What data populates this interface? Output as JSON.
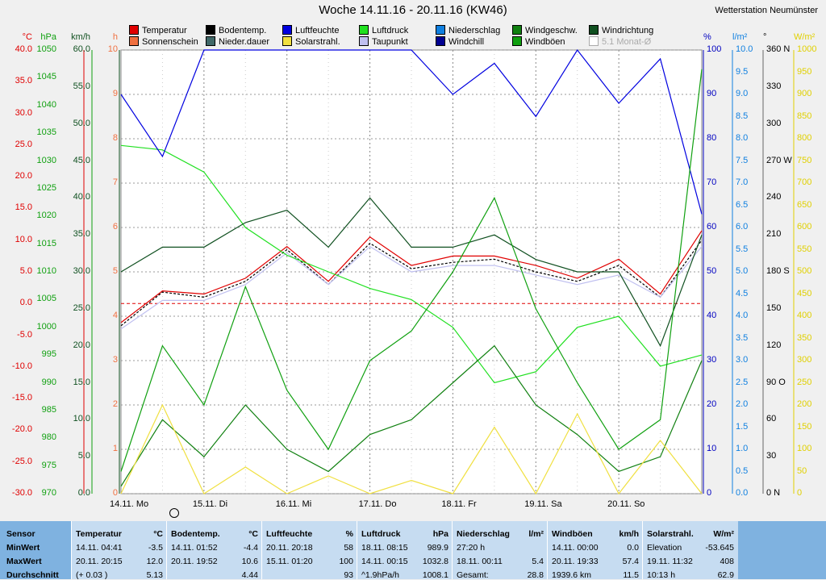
{
  "title": "Woche 14.11.16 - 20.11.16 (KW46)",
  "station": "Wetterstation Neumünster",
  "legend": [
    {
      "label": "Temperatur",
      "color": "#e00000"
    },
    {
      "label": "Bodentemp.",
      "color": "#000000"
    },
    {
      "label": "Luftfeuchte",
      "color": "#0000e0"
    },
    {
      "label": "Luftdruck",
      "color": "#20e020"
    },
    {
      "label": "Niederschlag",
      "color": "#1080e0"
    },
    {
      "label": "Windgeschw.",
      "color": "#108010"
    },
    {
      "label": "Windrichtung",
      "color": "#105020"
    },
    {
      "label": "Sonnenschein",
      "color": "#f07040"
    },
    {
      "label": "Nieder.dauer",
      "color": "#406868"
    },
    {
      "label": "Solarstrahl.",
      "color": "#f0e040"
    },
    {
      "label": "Taupunkt",
      "color": "#c0c0f0"
    },
    {
      "label": "Windchill",
      "color": "#000090"
    },
    {
      "label": "Windböen",
      "color": "#10a010"
    },
    {
      "label": "5.1 Monat-Ø",
      "color": "#d0d0d0"
    }
  ],
  "axes_left": [
    {
      "unit": "°C",
      "color": "#e00000",
      "ticks": [
        "40.0",
        "35.0",
        "30.0",
        "25.0",
        "20.0",
        "15.0",
        "10.0",
        "5.0",
        "0.0",
        "-5.0",
        "-10.0",
        "-15.0",
        "-20.0",
        "-25.0",
        "-30.0"
      ]
    },
    {
      "unit": "hPa",
      "color": "#10a010",
      "ticks": [
        "1050",
        "1045",
        "1040",
        "1035",
        "1030",
        "1025",
        "1020",
        "1015",
        "1010",
        "1005",
        "1000",
        "995",
        "990",
        "985",
        "980",
        "975",
        "970"
      ]
    },
    {
      "unit": "km/h",
      "color": "#105020",
      "ticks": [
        "60.0",
        "55.0",
        "50.0",
        "45.0",
        "40.0",
        "35.0",
        "30.0",
        "25.0",
        "20.0",
        "15.0",
        "10.0",
        "5.0",
        "0.0"
      ]
    },
    {
      "unit": "h",
      "color": "#f07040",
      "ticks": [
        "10",
        "9",
        "8",
        "7",
        "6",
        "5",
        "4",
        "3",
        "2",
        "1",
        "0"
      ]
    }
  ],
  "axes_right": [
    {
      "unit": "%",
      "color": "#0000c0",
      "ticks": [
        "100",
        "90",
        "80",
        "70",
        "60",
        "50",
        "40",
        "30",
        "20",
        "10",
        "0"
      ]
    },
    {
      "unit": "l/m²",
      "color": "#1080e0",
      "ticks": [
        "10.0",
        "9.5",
        "9.0",
        "8.5",
        "8.0",
        "7.5",
        "7.0",
        "6.5",
        "6.0",
        "5.5",
        "5.0",
        "4.5",
        "4.0",
        "3.5",
        "3.0",
        "2.5",
        "2.0",
        "1.5",
        "1.0",
        "0.5",
        "0.0"
      ]
    },
    {
      "unit": "°",
      "color": "#000000",
      "ticks": [
        "360 N",
        "330",
        "300",
        "270 W",
        "240",
        "210",
        "180 S",
        "150",
        "120",
        "90 O",
        "60",
        "30",
        "0 N"
      ]
    },
    {
      "unit": "W/m²",
      "color": "#e0d000",
      "ticks": [
        "1000",
        "950",
        "900",
        "850",
        "800",
        "750",
        "700",
        "650",
        "600",
        "550",
        "500",
        "450",
        "400",
        "350",
        "300",
        "250",
        "200",
        "150",
        "100",
        "50",
        "0"
      ]
    }
  ],
  "x_labels": [
    "14.11. Mo",
    "15.11. Di",
    "16.11. Mi",
    "17.11. Do",
    "18.11. Fr",
    "19.11. Sa",
    "20.11. So"
  ],
  "chart_data": {
    "type": "line",
    "title": "Woche 14.11.16 - 20.11.16 (KW46)",
    "x": [
      "14.11.",
      "14.11. 12h",
      "15.11.",
      "15.11. 12h",
      "16.11.",
      "16.11. 12h",
      "17.11.",
      "17.11. 12h",
      "18.11.",
      "18.11. 12h",
      "19.11.",
      "19.11. 12h",
      "20.11.",
      "20.11. 12h",
      "21.11."
    ],
    "series": [
      {
        "name": "Temperatur",
        "unit": "°C",
        "color": "#e00000",
        "values": [
          -3.0,
          2.0,
          1.5,
          4.0,
          9.0,
          3.5,
          10.5,
          6.0,
          7.5,
          7.5,
          6.0,
          4.0,
          7.0,
          1.5,
          11.5
        ]
      },
      {
        "name": "Bodentemp.",
        "unit": "°C",
        "color": "#000000",
        "values": [
          -3.5,
          1.8,
          1.0,
          3.5,
          8.5,
          3.0,
          9.5,
          5.5,
          6.5,
          7.0,
          5.0,
          3.5,
          6.0,
          1.0,
          10.0
        ]
      },
      {
        "name": "Taupunkt",
        "unit": "°C",
        "color": "#c0c0f0",
        "values": [
          -4.0,
          0.5,
          0.5,
          3.0,
          8.0,
          3.0,
          9.0,
          5.0,
          6.0,
          6.0,
          4.5,
          3.0,
          4.5,
          1.0,
          9.0
        ]
      },
      {
        "name": "Luftdruck",
        "unit": "hPa",
        "color": "#20e020",
        "values": [
          1032.8,
          1032,
          1028,
          1018,
          1013,
          1010,
          1007,
          1005,
          1000,
          990,
          992,
          1000,
          1002,
          993,
          995
        ]
      },
      {
        "name": "Luftfeuchte",
        "unit": "%",
        "color": "#0000e0",
        "values": [
          90,
          76,
          100,
          100,
          100,
          100,
          100,
          100,
          90,
          97,
          85,
          100,
          88,
          98,
          63
        ]
      },
      {
        "name": "Windrichtung",
        "unit": "°",
        "color": "#105020",
        "values": [
          180,
          200,
          200,
          220,
          230,
          200,
          240,
          200,
          200,
          210,
          190,
          180,
          180,
          120,
          210
        ]
      },
      {
        "name": "Windgeschw.",
        "unit": "km/h",
        "color": "#108010",
        "values": [
          1,
          10,
          5,
          12,
          6,
          3,
          8,
          10,
          15,
          20,
          12,
          8,
          3,
          5,
          18
        ]
      },
      {
        "name": "Windböen",
        "unit": "km/h",
        "color": "#10a010",
        "values": [
          3,
          20,
          12,
          28,
          14,
          6,
          18,
          22,
          30,
          40,
          25,
          15,
          6,
          10,
          57.4
        ]
      },
      {
        "name": "Solarstrahl.",
        "unit": "W/m²",
        "color": "#f0e040",
        "values": [
          0,
          200,
          0,
          60,
          0,
          40,
          0,
          30,
          0,
          150,
          0,
          180,
          0,
          120,
          0
        ]
      }
    ],
    "ylim_temp": [
      -30,
      40
    ],
    "ylim_hpa": [
      970,
      1050
    ],
    "ylim_pct": [
      0,
      100
    ],
    "zero_line_temp": 0
  },
  "stats": {
    "rows": [
      "Sensor",
      "MinWert",
      "MaxWert",
      "Durchschnitt"
    ],
    "cols": [
      {
        "name": "Temperatur",
        "unit": "°C",
        "min": [
          "14.11.  04:41",
          "-3.5"
        ],
        "max": [
          "20.11.  20:15",
          "12.0"
        ],
        "avg": [
          "(+ 0.03 )",
          "5.13"
        ]
      },
      {
        "name": "Bodentemp.",
        "unit": "°C",
        "min": [
          "14.11.  01:52",
          "-4.4"
        ],
        "max": [
          "20.11.  19:52",
          "10.6"
        ],
        "avg": [
          "",
          "4.44"
        ]
      },
      {
        "name": "Luftfeuchte",
        "unit": "%",
        "min": [
          "20.11.  20:18",
          "58"
        ],
        "max": [
          "15.11.  01:20",
          "100"
        ],
        "avg": [
          "",
          "93"
        ]
      },
      {
        "name": "Luftdruck",
        "unit": "hPa",
        "min": [
          "18.11.  08:15",
          "989.9"
        ],
        "max": [
          "14.11.  00:15",
          "1032.8"
        ],
        "avg": [
          "^1.9hPa/h",
          "1008.1"
        ]
      },
      {
        "name": "Niederschlag",
        "unit": "l/m²",
        "min": [
          "27:20 h",
          ""
        ],
        "max": [
          "18.11.  00:11",
          "5.4"
        ],
        "avg": [
          "Gesamt:",
          "28.8"
        ]
      },
      {
        "name": "Windböen",
        "unit": "km/h",
        "min": [
          "14.11.  00:00",
          "0.0"
        ],
        "max": [
          "20.11.  19:33",
          "57.4"
        ],
        "avg": [
          "1939.6 km",
          "11.5"
        ]
      },
      {
        "name": "Solarstrahl.",
        "unit": "W/m²",
        "min": [
          "Elevation",
          "-53.645"
        ],
        "max": [
          "19.11.  11:32",
          "408"
        ],
        "avg": [
          "10:13 h",
          "62.9"
        ]
      }
    ]
  }
}
